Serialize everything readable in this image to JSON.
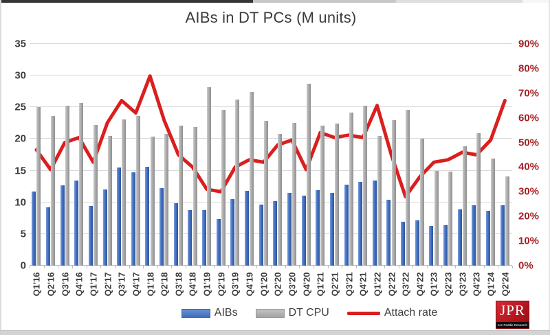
{
  "chart_data": {
    "type": "bar",
    "subtype": "combo-bar-line-dual-axis",
    "title": "AIBs in DT PCs (M units)",
    "categories": [
      "Q1'16",
      "Q2'16",
      "Q3'16",
      "Q4'16",
      "Q1'17",
      "Q2'17",
      "Q3'17",
      "Q4'17",
      "Q1'18",
      "Q2'18",
      "Q3'18",
      "Q4'18",
      "Q1'19",
      "Q2'19",
      "Q3'19",
      "Q4'19",
      "Q1'20",
      "Q2'20",
      "Q3'20",
      "Q4'20",
      "Q1'21",
      "Q2'21",
      "Q3'21",
      "Q4'21",
      "Q1'22",
      "Q2'22",
      "Q3'22",
      "Q4'22",
      "Q1'23",
      "Q2'23",
      "Q3'23",
      "Q4'23",
      "Q1'24",
      "Q2'24"
    ],
    "series": [
      {
        "name": "AIBs",
        "type": "bar",
        "axis": "left",
        "color": "#4472c4",
        "values": [
          11.7,
          9.2,
          12.7,
          13.4,
          9.4,
          12.0,
          15.5,
          14.7,
          15.6,
          12.2,
          9.9,
          8.8,
          8.8,
          7.4,
          10.5,
          11.8,
          9.6,
          10.2,
          11.5,
          11.1,
          11.9,
          11.5,
          12.8,
          13.2,
          13.4,
          10.4,
          6.9,
          7.2,
          6.3,
          6.4,
          8.9,
          9.5,
          8.7,
          9.5
        ]
      },
      {
        "name": "DT CPU",
        "type": "bar",
        "axis": "left",
        "color": "#ababab",
        "values": [
          25.0,
          23.6,
          25.2,
          25.7,
          22.2,
          20.5,
          23.1,
          23.6,
          20.4,
          20.8,
          22.1,
          21.9,
          28.2,
          24.6,
          26.2,
          27.4,
          22.9,
          20.8,
          22.5,
          28.7,
          22.1,
          22.4,
          24.2,
          25.3,
          20.5,
          23.0,
          24.6,
          20.0,
          15.0,
          14.8,
          18.9,
          20.9,
          16.9,
          14.1
        ]
      },
      {
        "name": "Attach rate",
        "type": "line",
        "axis": "right",
        "color": "#da1f1f",
        "values_pct": [
          47,
          39,
          50,
          52,
          42,
          58,
          67,
          62,
          77,
          59,
          45,
          40,
          31,
          30,
          40,
          43,
          42,
          49,
          51,
          39,
          54,
          52,
          53,
          52,
          65,
          45,
          28,
          36,
          42,
          43,
          46,
          45,
          51,
          67
        ]
      }
    ],
    "left_axis": {
      "min": 0,
      "max": 35,
      "tick_step": 5,
      "ticks": [
        "35",
        "30",
        "25",
        "20",
        "15",
        "10",
        "5",
        "0"
      ]
    },
    "right_axis": {
      "min_pct": 0,
      "max_pct": 90,
      "tick_step_pct": 10,
      "ticks": [
        "90%",
        "80%",
        "70%",
        "60%",
        "50%",
        "40%",
        "30%",
        "20%",
        "10%",
        "0%"
      ],
      "color": "#a62024"
    },
    "grid": true,
    "legend_position": "bottom",
    "colors": {
      "background": "#ffffff",
      "gridline": "#d9d9d9",
      "axis_text": "#3f3f3f",
      "title_text": "#3a3a3a"
    }
  },
  "legend": {
    "aibs": "AIBs",
    "dt_cpu": "DT CPU",
    "attach": "Attach rate"
  },
  "logo": {
    "text": "JPR",
    "subtext": "Jon Peddie Research"
  }
}
